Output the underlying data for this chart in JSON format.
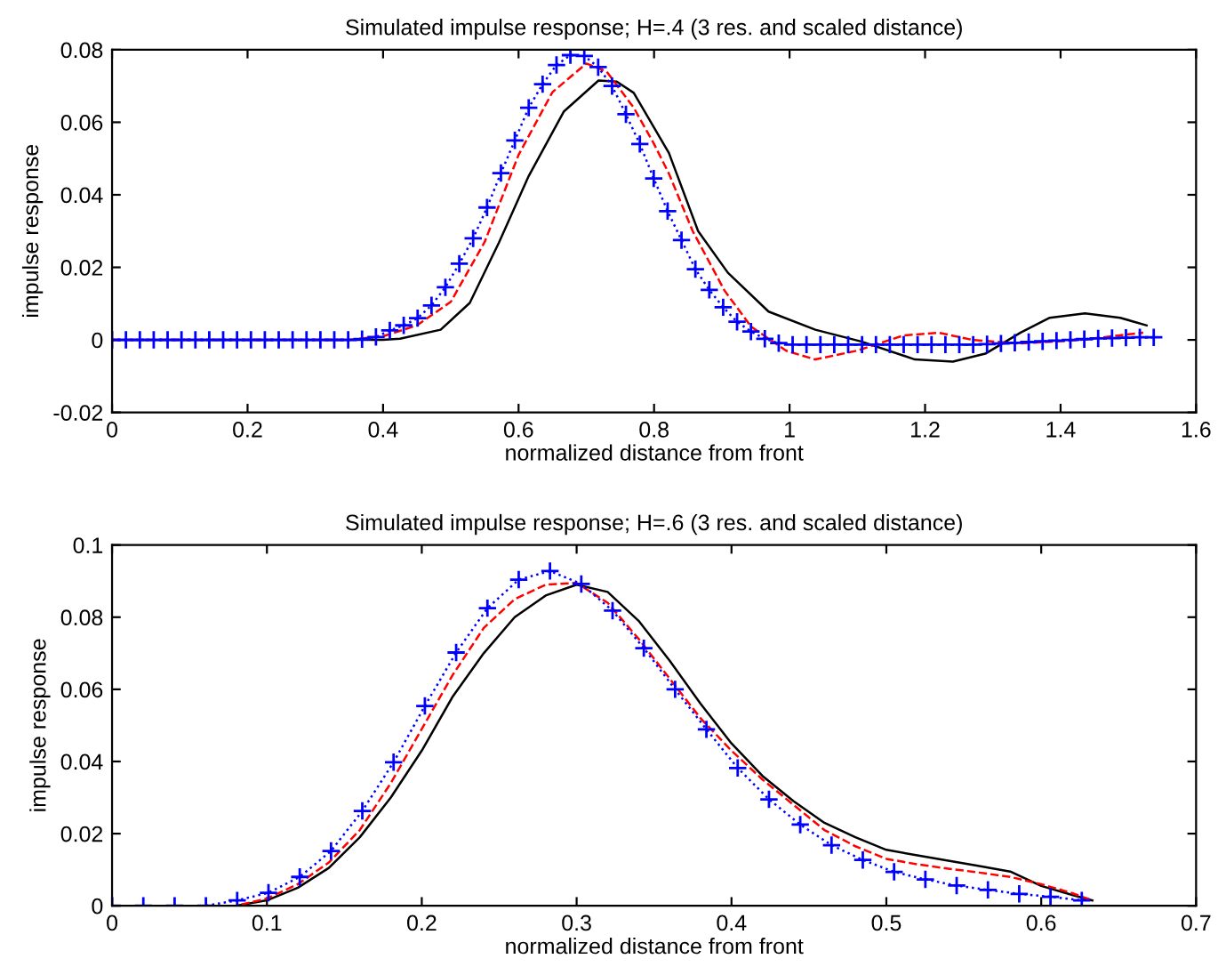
{
  "chart_data": [
    {
      "type": "line",
      "title": "Simulated impulse response; H=.4 (3 res. and scaled distance)",
      "xlabel": "normalized distance from front",
      "ylabel": "impulse response",
      "xlim": [
        0,
        1.6
      ],
      "ylim": [
        -0.02,
        0.08
      ],
      "xticks": [
        0,
        0.2,
        0.4,
        0.6,
        0.8,
        1,
        1.2,
        1.4,
        1.6
      ],
      "yticks": [
        -0.02,
        0,
        0.02,
        0.04,
        0.06,
        0.08
      ],
      "grid": false,
      "series": [
        {
          "color": "#000000",
          "line_style": "solid",
          "marker": "none",
          "x": [
            0,
            0.35,
            0.4,
            0.425,
            0.485,
            0.528,
            0.571,
            0.615,
            0.667,
            0.718,
            0.745,
            0.77,
            0.822,
            0.865,
            0.909,
            0.969,
            1.038,
            1.107,
            1.185,
            1.241,
            1.289,
            1.341,
            1.384,
            1.436,
            1.488,
            1.527
          ],
          "values": [
            0,
            0,
            0,
            0.0003,
            0.0028,
            0.0102,
            0.0268,
            0.0452,
            0.063,
            0.0715,
            0.0712,
            0.0681,
            0.0515,
            0.03,
            0.0185,
            0.0078,
            0.0028,
            -0.0005,
            -0.0054,
            -0.006,
            -0.0038,
            0.002,
            0.0061,
            0.0073,
            0.0061,
            0.004
          ]
        },
        {
          "color": "#ff0000",
          "line_style": "dashed",
          "marker": "none",
          "x": [
            0,
            0.35,
            0.4,
            0.45,
            0.5,
            0.55,
            0.6,
            0.65,
            0.7,
            0.73,
            0.77,
            0.8,
            0.822,
            0.857,
            0.904,
            0.943,
            0.995,
            1.038,
            1.099,
            1.168,
            1.22,
            1.27,
            1.34,
            1.43,
            1.522
          ],
          "values": [
            0,
            0,
            0.001,
            0.004,
            0.0105,
            0.027,
            0.051,
            0.0683,
            0.0762,
            0.074,
            0.064,
            0.054,
            0.0458,
            0.03,
            0.0136,
            0.0037,
            -0.003,
            -0.0054,
            -0.003,
            0.0012,
            0.002,
            0,
            -0.001,
            0,
            0.002
          ]
        },
        {
          "color": "#0000ff",
          "line_style": "dotted",
          "marker": "cross",
          "x": [
            0,
            0.0205,
            0.041,
            0.0615,
            0.082,
            0.1025,
            0.123,
            0.1435,
            0.164,
            0.1845,
            0.205,
            0.2255,
            0.246,
            0.2665,
            0.287,
            0.3075,
            0.328,
            0.3485,
            0.369,
            0.3895,
            0.41,
            0.4305,
            0.451,
            0.4715,
            0.492,
            0.5125,
            0.533,
            0.5535,
            0.574,
            0.5945,
            0.615,
            0.6355,
            0.656,
            0.6765,
            0.697,
            0.7175,
            0.738,
            0.7585,
            0.779,
            0.7995,
            0.82,
            0.8405,
            0.861,
            0.8815,
            0.902,
            0.9225,
            0.943,
            0.9635,
            0.984,
            1.0045,
            1.025,
            1.0455,
            1.066,
            1.0865,
            1.107,
            1.1275,
            1.148,
            1.1685,
            1.189,
            1.2095,
            1.23,
            1.2505,
            1.271,
            1.2915,
            1.312,
            1.3325,
            1.353,
            1.3735,
            1.394,
            1.4145,
            1.435,
            1.4555,
            1.476,
            1.4965,
            1.517,
            1.5375
          ],
          "values": [
            0,
            0,
            0,
            0,
            0,
            0,
            0,
            0,
            0,
            0,
            0,
            0,
            0,
            0,
            0,
            0,
            0,
            0,
            0.0002,
            0.0008,
            0.0026,
            0.004,
            0.006,
            0.0095,
            0.0145,
            0.021,
            0.028,
            0.0365,
            0.046,
            0.055,
            0.064,
            0.0705,
            0.0758,
            0.0785,
            0.0783,
            0.0752,
            0.07,
            0.0622,
            0.054,
            0.0445,
            0.0355,
            0.0275,
            0.0195,
            0.0138,
            0.009,
            0.005,
            0.0023,
            0.0003,
            -0.0009,
            -0.0013,
            -0.0013,
            -0.0013,
            -0.0013,
            -0.0013,
            -0.0013,
            -0.0013,
            -0.0013,
            -0.0013,
            -0.0013,
            -0.0013,
            -0.0013,
            -0.0013,
            -0.0013,
            -0.0012,
            -0.001,
            -0.0008,
            -0.0006,
            -0.0004,
            -0.0002,
            0,
            0.0002,
            0.0004,
            0.0005,
            0.0006,
            0.0007,
            0.0007
          ]
        }
      ]
    },
    {
      "type": "line",
      "title": "Simulated impulse response; H=.6 (3 res. and scaled distance)",
      "xlabel": "normalized distance from front",
      "ylabel": "impulse response",
      "xlim": [
        0,
        0.7
      ],
      "ylim": [
        0,
        0.1
      ],
      "xticks": [
        0,
        0.1,
        0.2,
        0.3,
        0.4,
        0.5,
        0.6,
        0.7
      ],
      "yticks": [
        0,
        0.02,
        0.04,
        0.06,
        0.08,
        0.1
      ],
      "grid": false,
      "series": [
        {
          "color": "#000000",
          "line_style": "solid",
          "marker": "none",
          "x": [
            0,
            0.08,
            0.1,
            0.12,
            0.14,
            0.16,
            0.18,
            0.2,
            0.22,
            0.24,
            0.26,
            0.28,
            0.3,
            0.32,
            0.34,
            0.36,
            0.38,
            0.4,
            0.42,
            0.44,
            0.46,
            0.48,
            0.5,
            0.52,
            0.54,
            0.56,
            0.58,
            0.6,
            0.62,
            0.633
          ],
          "values": [
            0,
            0,
            0.0015,
            0.005,
            0.0105,
            0.019,
            0.03,
            0.043,
            0.058,
            0.07,
            0.08,
            0.086,
            0.089,
            0.087,
            0.079,
            0.068,
            0.056,
            0.045,
            0.036,
            0.029,
            0.023,
            0.019,
            0.0155,
            0.014,
            0.0125,
            0.011,
            0.0095,
            0.0055,
            0.003,
            0.0015
          ]
        },
        {
          "color": "#ff0000",
          "line_style": "dashed",
          "marker": "none",
          "x": [
            0,
            0.08,
            0.1,
            0.12,
            0.14,
            0.16,
            0.18,
            0.2,
            0.22,
            0.24,
            0.26,
            0.28,
            0.3,
            0.32,
            0.34,
            0.36,
            0.38,
            0.4,
            0.42,
            0.44,
            0.46,
            0.48,
            0.5,
            0.52,
            0.54,
            0.56,
            0.58,
            0.6,
            0.62,
            0.633
          ],
          "values": [
            0,
            0,
            0.002,
            0.006,
            0.012,
            0.021,
            0.034,
            0.049,
            0.064,
            0.077,
            0.085,
            0.089,
            0.0895,
            0.084,
            0.074,
            0.063,
            0.052,
            0.043,
            0.035,
            0.028,
            0.021,
            0.0165,
            0.013,
            0.0115,
            0.0103,
            0.0092,
            0.008,
            0.006,
            0.0035,
            0.0015
          ]
        },
        {
          "color": "#0000ff",
          "line_style": "dotted",
          "marker": "cross",
          "x": [
            0,
            0.0202,
            0.0404,
            0.0606,
            0.0808,
            0.101,
            0.1212,
            0.1414,
            0.1616,
            0.1818,
            0.202,
            0.2222,
            0.2424,
            0.2626,
            0.2828,
            0.303,
            0.3232,
            0.3434,
            0.3636,
            0.3838,
            0.404,
            0.4242,
            0.4444,
            0.4646,
            0.4848,
            0.505,
            0.5252,
            0.5454,
            0.5656,
            0.5858,
            0.606,
            0.6262
          ],
          "values": [
            0,
            0,
            0,
            0,
            0.0015,
            0.0036,
            0.008,
            0.0152,
            0.0263,
            0.0398,
            0.0554,
            0.0702,
            0.0825,
            0.0904,
            0.0928,
            0.0892,
            0.0818,
            0.0714,
            0.06,
            0.0489,
            0.0382,
            0.0295,
            0.0225,
            0.0168,
            0.0127,
            0.0094,
            0.0073,
            0.0056,
            0.0044,
            0.0033,
            0.0025,
            0.0015
          ]
        }
      ]
    }
  ]
}
